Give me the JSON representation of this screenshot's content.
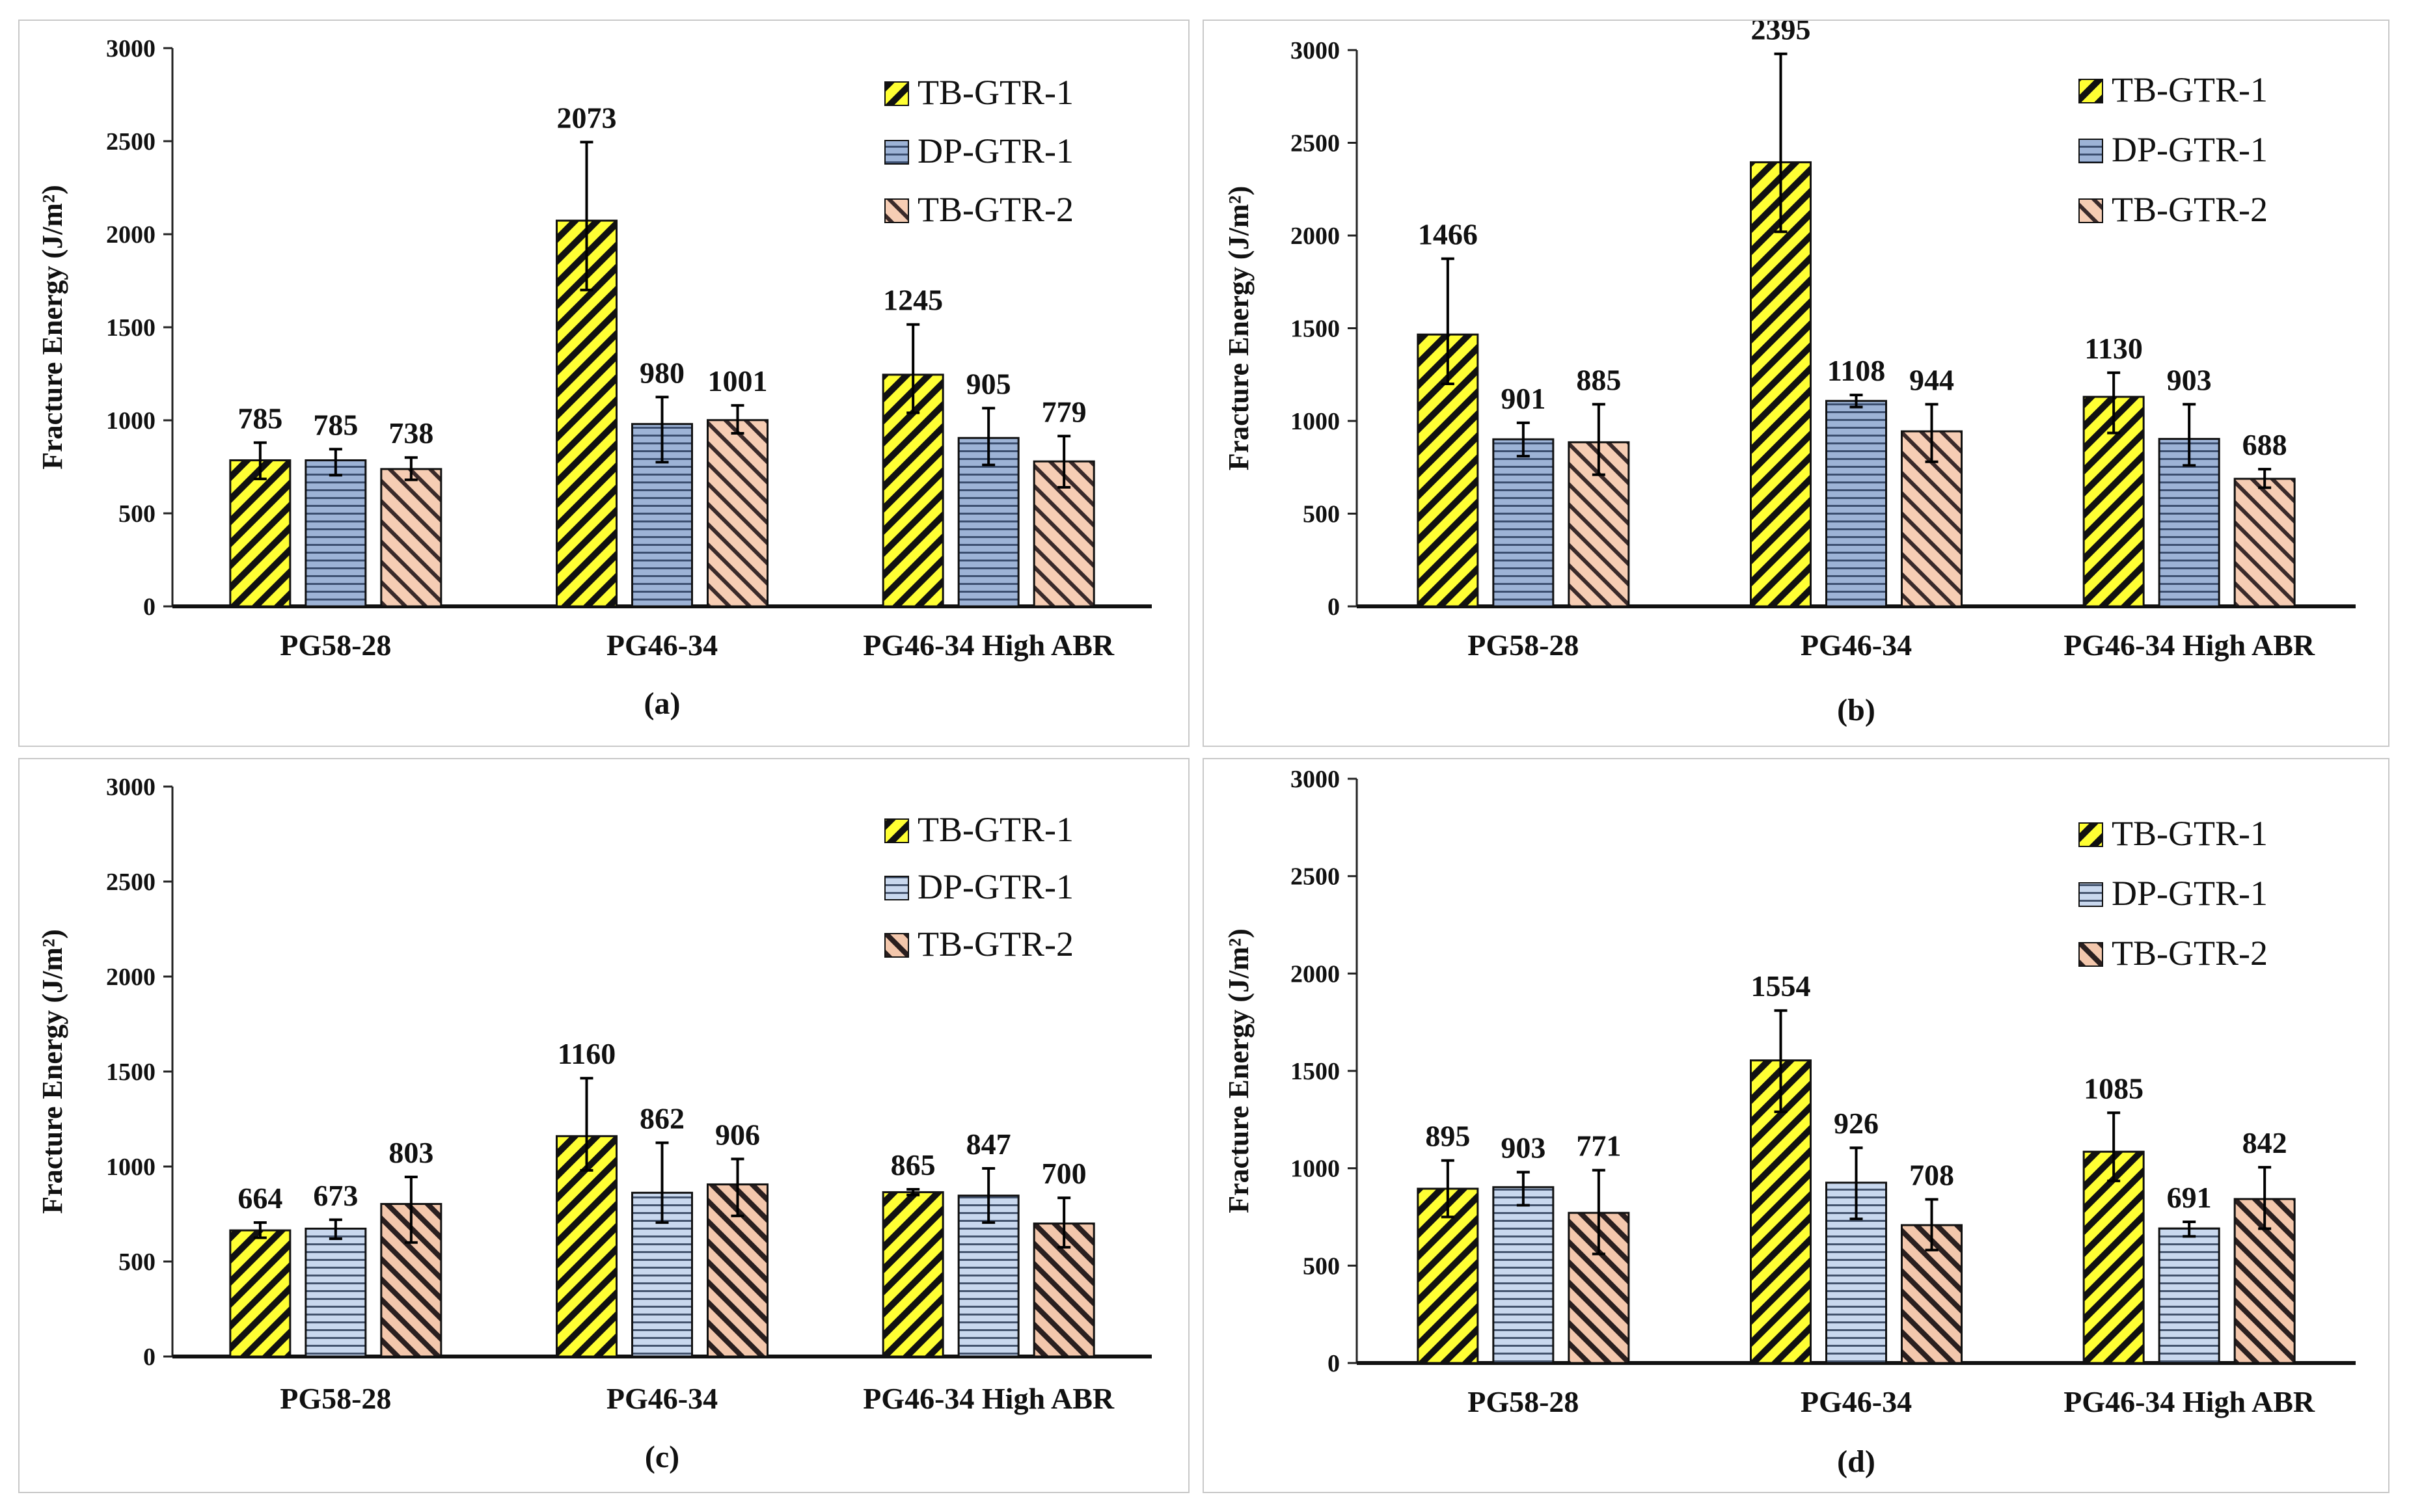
{
  "figure": {
    "panel_labels": [
      "(a)",
      "(b)",
      "(c)",
      "(d)"
    ]
  },
  "chart_data": [
    {
      "type": "bar",
      "panel": "(a)",
      "title": "",
      "xlabel": "",
      "ylabel": "Fracture Energy (J/m²)",
      "ylim": [
        0,
        3000
      ],
      "yticks": [
        0,
        500,
        1000,
        1500,
        2000,
        2500,
        3000
      ],
      "categories": [
        "PG58-28",
        "PG46-34",
        "PG46-34 High ABR"
      ],
      "legend_position": "top-right",
      "series": [
        {
          "name": "TB-GTR-1",
          "pattern": "yellow-diagonal",
          "values": [
            785,
            2073,
            1245
          ],
          "err_low": [
            685,
            1700,
            1040
          ],
          "err_high": [
            880,
            2495,
            1515
          ],
          "labels": [
            "785",
            "2073",
            "1245"
          ]
        },
        {
          "name": "DP-GTR-1",
          "pattern": "blue-horizontal",
          "values": [
            785,
            980,
            905
          ],
          "err_low": [
            705,
            775,
            760
          ],
          "err_high": [
            845,
            1125,
            1065
          ],
          "labels": [
            "785",
            "980",
            "905"
          ]
        },
        {
          "name": "TB-GTR-2",
          "pattern": "peach-diagonal",
          "values": [
            738,
            1001,
            779
          ],
          "err_low": [
            680,
            930,
            640
          ],
          "err_high": [
            800,
            1080,
            915
          ],
          "labels": [
            "738",
            "1001",
            "779"
          ]
        }
      ]
    },
    {
      "type": "bar",
      "panel": "(b)",
      "title": "",
      "xlabel": "",
      "ylabel": "Fracture Energy (J/m²)",
      "ylim": [
        0,
        3000
      ],
      "yticks": [
        0,
        500,
        1000,
        1500,
        2000,
        2500,
        3000
      ],
      "categories": [
        "PG58-28",
        "PG46-34",
        "PG46-34 High ABR"
      ],
      "legend_position": "top-right",
      "series": [
        {
          "name": "TB-GTR-1",
          "pattern": "yellow-diagonal",
          "values": [
            1466,
            2395,
            1130
          ],
          "err_low": [
            1200,
            2020,
            935
          ],
          "err_high": [
            1875,
            2980,
            1260
          ],
          "labels": [
            "1466",
            "2395",
            "1130"
          ]
        },
        {
          "name": "DP-GTR-1",
          "pattern": "blue-horizontal",
          "values": [
            901,
            1108,
            903
          ],
          "err_low": [
            810,
            1075,
            760
          ],
          "err_high": [
            990,
            1140,
            1090
          ],
          "labels": [
            "901",
            "1108",
            "903"
          ]
        },
        {
          "name": "TB-GTR-2",
          "pattern": "peach-diagonal",
          "values": [
            885,
            944,
            688
          ],
          "err_low": [
            710,
            780,
            640
          ],
          "err_high": [
            1090,
            1090,
            740
          ],
          "labels": [
            "885",
            "944",
            "688"
          ]
        }
      ]
    },
    {
      "type": "bar",
      "panel": "(c)",
      "title": "",
      "xlabel": "",
      "ylabel": "Fracture Energy (J/m²)",
      "ylim": [
        0,
        3000
      ],
      "yticks": [
        0,
        500,
        1000,
        1500,
        2000,
        2500,
        3000
      ],
      "categories": [
        "PG58-28",
        "PG46-34",
        "PG46-34 High ABR"
      ],
      "legend_position": "top-right",
      "series": [
        {
          "name": "TB-GTR-1",
          "pattern": "yellow-diagonal",
          "values": [
            664,
            1160,
            865
          ],
          "err_low": [
            625,
            980,
            850
          ],
          "err_high": [
            705,
            1465,
            880
          ],
          "labels": [
            "664",
            "1160",
            "865"
          ]
        },
        {
          "name": "DP-GTR-1",
          "pattern": "lightblue-horizontal",
          "values": [
            673,
            862,
            847
          ],
          "err_low": [
            620,
            705,
            705
          ],
          "err_high": [
            720,
            1125,
            990
          ],
          "labels": [
            "673",
            "862",
            "847"
          ]
        },
        {
          "name": "TB-GTR-2",
          "pattern": "peach-diagonal-dark",
          "values": [
            803,
            906,
            700
          ],
          "err_low": [
            600,
            740,
            575
          ],
          "err_high": [
            945,
            1040,
            835
          ],
          "labels": [
            "803",
            "906",
            "700"
          ]
        }
      ]
    },
    {
      "type": "bar",
      "panel": "(d)",
      "title": "",
      "xlabel": "",
      "ylabel": "Fracture Energy (J/m²)",
      "ylim": [
        0,
        3000
      ],
      "yticks": [
        0,
        500,
        1000,
        1500,
        2000,
        2500,
        3000
      ],
      "categories": [
        "PG58-28",
        "PG46-34",
        "PG46-34 High ABR"
      ],
      "legend_position": "top-right",
      "series": [
        {
          "name": "TB-GTR-1",
          "pattern": "yellow-diagonal",
          "values": [
            895,
            1554,
            1085
          ],
          "err_low": [
            750,
            1290,
            935
          ],
          "err_high": [
            1040,
            1810,
            1285
          ],
          "labels": [
            "895",
            "1554",
            "1085"
          ]
        },
        {
          "name": "DP-GTR-1",
          "pattern": "lightblue-horizontal",
          "values": [
            903,
            926,
            691
          ],
          "err_low": [
            810,
            740,
            650
          ],
          "err_high": [
            980,
            1105,
            725
          ],
          "labels": [
            "903",
            "926",
            "691"
          ]
        },
        {
          "name": "TB-GTR-2",
          "pattern": "peach-diagonal-dark",
          "values": [
            771,
            708,
            842
          ],
          "err_low": [
            560,
            580,
            690
          ],
          "err_high": [
            990,
            840,
            1005
          ],
          "labels": [
            "771",
            "708",
            "842"
          ]
        }
      ]
    }
  ]
}
